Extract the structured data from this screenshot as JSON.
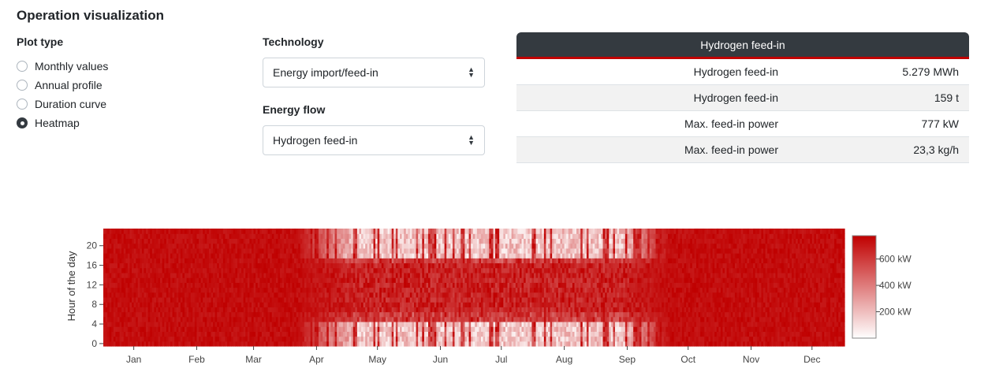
{
  "page": {
    "title": "Operation visualization"
  },
  "plot_type": {
    "label": "Plot type",
    "options": [
      {
        "label": "Monthly values",
        "checked": false
      },
      {
        "label": "Annual profile",
        "checked": false
      },
      {
        "label": "Duration curve",
        "checked": false
      },
      {
        "label": "Heatmap",
        "checked": true
      }
    ]
  },
  "technology": {
    "label": "Technology",
    "value": "Energy import/feed-in"
  },
  "energy_flow": {
    "label": "Energy flow",
    "value": "Hydrogen feed-in"
  },
  "summary": {
    "header": "Hydrogen feed-in",
    "accent_color": "#c00000",
    "rows": [
      {
        "label": "Hydrogen feed-in",
        "value": "5.279 MWh"
      },
      {
        "label": "Hydrogen feed-in",
        "value": "159 t"
      },
      {
        "label": "Max. feed-in power",
        "value": "777 kW"
      },
      {
        "label": "Max. feed-in power",
        "value": "23,3 kg/h"
      }
    ]
  },
  "chart_data": {
    "type": "heatmap",
    "ylabel": "Hour of the day",
    "xlabel": "",
    "x_ticks": [
      "Jan",
      "Feb",
      "Mar",
      "Apr",
      "May",
      "Jun",
      "Jul",
      "Aug",
      "Sep",
      "Oct",
      "Nov",
      "Dec"
    ],
    "y_ticks": [
      "0",
      "4",
      "8",
      "12",
      "16",
      "20"
    ],
    "y_range": [
      0,
      23
    ],
    "x_range": [
      "day 1",
      "day 365"
    ],
    "colorbar": {
      "ticks": [
        "200 kW",
        "400 kW",
        "600 kW"
      ],
      "min_color": "#ffffff",
      "max_color": "#c00000",
      "max": 777,
      "unit": "kW"
    },
    "pattern": {
      "winter_months": "Jan–Apr and Oct–Dec near maximum feed-in at all hours",
      "summer_months": "May–Sep high feed-in around hours 5–17, low at night"
    }
  }
}
